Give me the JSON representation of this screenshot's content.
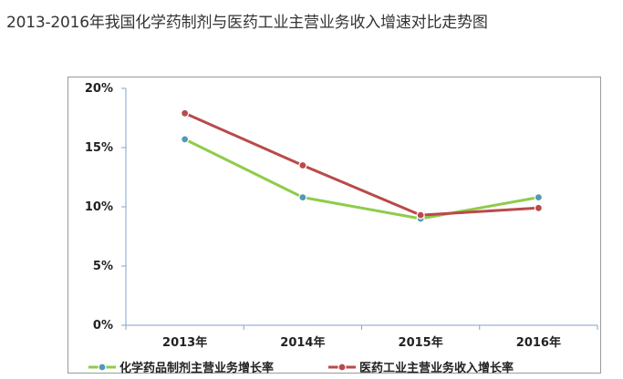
{
  "title": "2013-2016年我国化学药制剂与医药工业主营业务收入增速对比走势图",
  "chart_data": {
    "type": "line",
    "categories": [
      "2013年",
      "2014年",
      "2015年",
      "2016年"
    ],
    "series": [
      {
        "name": "化学药品制剂主营业务增长率",
        "color": "#8fcc4a",
        "marker_color": "#4f9ab8",
        "values": [
          15.7,
          10.8,
          9.0,
          10.8
        ]
      },
      {
        "name": "医药工业主营业务收入增长率",
        "color": "#b94a4a",
        "marker_color": "#b94a4a",
        "values": [
          17.9,
          13.5,
          9.3,
          9.9
        ]
      }
    ],
    "yticks": [
      "0%",
      "5%",
      "10%",
      "15%",
      "20%"
    ],
    "ylim": [
      0,
      20
    ],
    "ytick_values": [
      0,
      5,
      10,
      15,
      20
    ],
    "grid": false,
    "legend_position": "bottom"
  }
}
